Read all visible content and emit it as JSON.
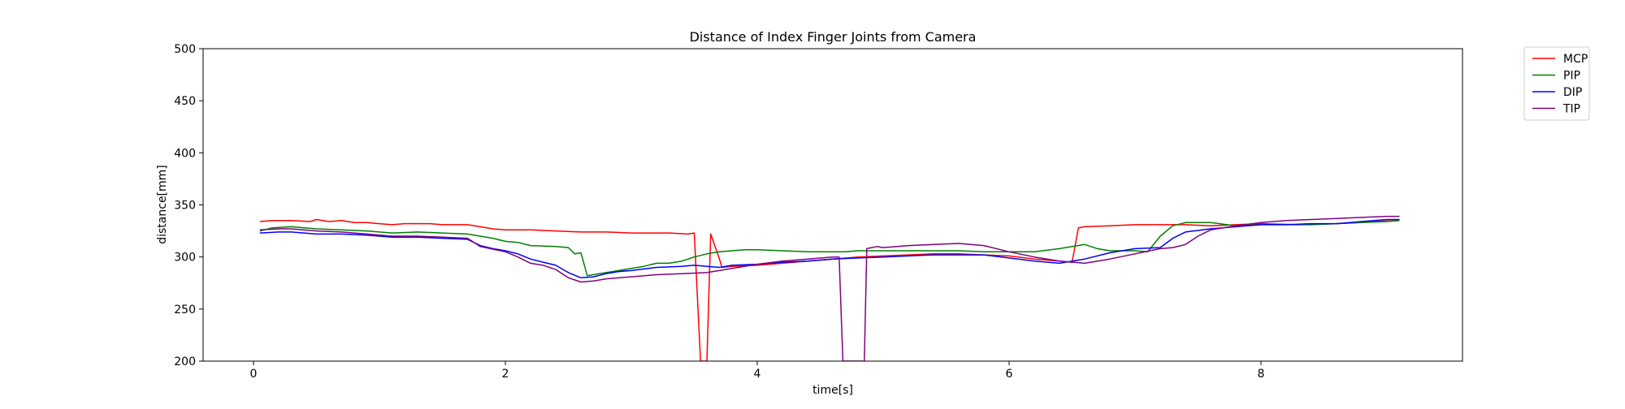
{
  "chart_data": {
    "type": "line",
    "title": "Distance of Index Finger Joints from Camera",
    "xlabel": "time[s]",
    "ylabel": "distance[mm]",
    "xlim": [
      -0.4,
      9.6
    ],
    "ylim": [
      200,
      500
    ],
    "xticks": [
      0,
      2,
      4,
      6,
      8
    ],
    "yticks": [
      200,
      250,
      300,
      350,
      400,
      450,
      500
    ],
    "grid": false,
    "legend_position": "outside-top-right",
    "series": [
      {
        "name": "MCP",
        "color": "#ff0000",
        "points": [
          [
            0.05,
            334
          ],
          [
            0.15,
            335
          ],
          [
            0.3,
            335
          ],
          [
            0.45,
            334
          ],
          [
            0.5,
            336
          ],
          [
            0.6,
            334
          ],
          [
            0.7,
            335
          ],
          [
            0.8,
            333
          ],
          [
            0.9,
            333
          ],
          [
            1.0,
            332
          ],
          [
            1.1,
            331
          ],
          [
            1.2,
            332
          ],
          [
            1.4,
            332
          ],
          [
            1.5,
            331
          ],
          [
            1.7,
            331
          ],
          [
            1.8,
            329
          ],
          [
            1.9,
            327
          ],
          [
            2.0,
            326
          ],
          [
            2.2,
            326
          ],
          [
            2.4,
            325
          ],
          [
            2.6,
            324
          ],
          [
            2.8,
            324
          ],
          [
            3.0,
            323
          ],
          [
            3.3,
            323
          ],
          [
            3.45,
            322
          ],
          [
            3.5,
            323
          ],
          [
            3.55,
            200
          ],
          [
            3.6,
            200
          ],
          [
            3.63,
            322
          ],
          [
            3.7,
            298
          ],
          [
            3.72,
            290
          ],
          [
            3.8,
            291
          ],
          [
            4.0,
            292
          ],
          [
            4.2,
            294
          ],
          [
            4.4,
            296
          ],
          [
            4.6,
            298
          ],
          [
            4.8,
            300
          ],
          [
            5.0,
            301
          ],
          [
            5.2,
            302
          ],
          [
            5.4,
            303
          ],
          [
            5.6,
            303
          ],
          [
            5.8,
            302
          ],
          [
            6.0,
            301
          ],
          [
            6.2,
            298
          ],
          [
            6.4,
            296
          ],
          [
            6.5,
            295
          ],
          [
            6.55,
            328
          ],
          [
            6.6,
            329
          ],
          [
            6.8,
            330
          ],
          [
            7.0,
            331
          ],
          [
            7.2,
            331
          ],
          [
            7.4,
            331
          ],
          [
            7.6,
            330
          ],
          [
            7.8,
            331
          ],
          [
            8.0,
            332
          ],
          [
            8.3,
            331
          ],
          [
            8.6,
            332
          ],
          [
            8.9,
            334
          ],
          [
            9.1,
            335
          ]
        ]
      },
      {
        "name": "PIP",
        "color": "#008000",
        "points": [
          [
            0.05,
            325
          ],
          [
            0.15,
            328
          ],
          [
            0.3,
            329
          ],
          [
            0.5,
            327
          ],
          [
            0.7,
            326
          ],
          [
            0.9,
            325
          ],
          [
            1.1,
            323
          ],
          [
            1.3,
            324
          ],
          [
            1.5,
            323
          ],
          [
            1.7,
            322
          ],
          [
            1.8,
            320
          ],
          [
            1.9,
            318
          ],
          [
            2.0,
            315
          ],
          [
            2.1,
            314
          ],
          [
            2.2,
            311
          ],
          [
            2.4,
            310
          ],
          [
            2.5,
            309
          ],
          [
            2.55,
            303
          ],
          [
            2.6,
            304
          ],
          [
            2.65,
            282
          ],
          [
            2.8,
            285
          ],
          [
            2.9,
            287
          ],
          [
            3.0,
            289
          ],
          [
            3.1,
            291
          ],
          [
            3.2,
            294
          ],
          [
            3.3,
            294
          ],
          [
            3.4,
            296
          ],
          [
            3.5,
            300
          ],
          [
            3.6,
            303
          ],
          [
            3.7,
            305
          ],
          [
            3.8,
            306
          ],
          [
            3.9,
            307
          ],
          [
            4.0,
            307
          ],
          [
            4.2,
            306
          ],
          [
            4.4,
            305
          ],
          [
            4.6,
            305
          ],
          [
            4.7,
            305
          ],
          [
            4.8,
            306
          ],
          [
            5.0,
            306
          ],
          [
            5.2,
            306
          ],
          [
            5.4,
            306
          ],
          [
            5.6,
            306
          ],
          [
            5.8,
            305
          ],
          [
            6.0,
            305
          ],
          [
            6.2,
            305
          ],
          [
            6.4,
            308
          ],
          [
            6.6,
            312
          ],
          [
            6.7,
            308
          ],
          [
            6.8,
            306
          ],
          [
            7.0,
            306
          ],
          [
            7.1,
            305
          ],
          [
            7.2,
            320
          ],
          [
            7.3,
            330
          ],
          [
            7.4,
            333
          ],
          [
            7.6,
            333
          ],
          [
            7.8,
            330
          ],
          [
            8.0,
            331
          ],
          [
            8.2,
            331
          ],
          [
            8.4,
            331
          ],
          [
            8.6,
            332
          ],
          [
            8.8,
            333
          ],
          [
            9.0,
            334
          ],
          [
            9.1,
            335
          ]
        ]
      },
      {
        "name": "DIP",
        "color": "#0000ff",
        "points": [
          [
            0.05,
            323
          ],
          [
            0.2,
            324
          ],
          [
            0.3,
            324
          ],
          [
            0.5,
            322
          ],
          [
            0.7,
            322
          ],
          [
            0.9,
            321
          ],
          [
            1.1,
            319
          ],
          [
            1.3,
            319
          ],
          [
            1.5,
            318
          ],
          [
            1.7,
            317
          ],
          [
            1.8,
            311
          ],
          [
            1.9,
            308
          ],
          [
            2.0,
            306
          ],
          [
            2.1,
            303
          ],
          [
            2.2,
            298
          ],
          [
            2.3,
            295
          ],
          [
            2.4,
            292
          ],
          [
            2.5,
            285
          ],
          [
            2.6,
            280
          ],
          [
            2.7,
            281
          ],
          [
            2.8,
            284
          ],
          [
            2.9,
            286
          ],
          [
            3.0,
            287
          ],
          [
            3.2,
            290
          ],
          [
            3.4,
            291
          ],
          [
            3.5,
            292
          ],
          [
            3.6,
            291
          ],
          [
            3.7,
            290
          ],
          [
            3.8,
            292
          ],
          [
            4.0,
            293
          ],
          [
            4.2,
            295
          ],
          [
            4.4,
            296
          ],
          [
            4.6,
            298
          ],
          [
            4.8,
            299
          ],
          [
            5.0,
            300
          ],
          [
            5.2,
            301
          ],
          [
            5.4,
            302
          ],
          [
            5.6,
            302
          ],
          [
            5.8,
            302
          ],
          [
            6.0,
            299
          ],
          [
            6.2,
            296
          ],
          [
            6.4,
            294
          ],
          [
            6.6,
            298
          ],
          [
            6.8,
            304
          ],
          [
            7.0,
            308
          ],
          [
            7.2,
            309
          ],
          [
            7.3,
            318
          ],
          [
            7.4,
            324
          ],
          [
            7.6,
            327
          ],
          [
            7.8,
            329
          ],
          [
            8.0,
            331
          ],
          [
            8.2,
            331
          ],
          [
            8.4,
            332
          ],
          [
            8.6,
            332
          ],
          [
            8.8,
            334
          ],
          [
            9.0,
            336
          ],
          [
            9.1,
            336
          ]
        ]
      },
      {
        "name": "TIP",
        "color": "#800080",
        "points": [
          [
            0.05,
            326
          ],
          [
            0.2,
            327
          ],
          [
            0.3,
            327
          ],
          [
            0.5,
            325
          ],
          [
            0.7,
            324
          ],
          [
            0.9,
            322
          ],
          [
            1.1,
            320
          ],
          [
            1.3,
            320
          ],
          [
            1.5,
            319
          ],
          [
            1.7,
            318
          ],
          [
            1.8,
            310
          ],
          [
            2.0,
            305
          ],
          [
            2.1,
            300
          ],
          [
            2.2,
            294
          ],
          [
            2.3,
            292
          ],
          [
            2.4,
            288
          ],
          [
            2.5,
            280
          ],
          [
            2.6,
            276
          ],
          [
            2.7,
            277
          ],
          [
            2.8,
            279
          ],
          [
            3.0,
            281
          ],
          [
            3.2,
            283
          ],
          [
            3.4,
            284
          ],
          [
            3.6,
            285
          ],
          [
            3.8,
            289
          ],
          [
            4.0,
            293
          ],
          [
            4.2,
            296
          ],
          [
            4.4,
            298
          ],
          [
            4.6,
            300
          ],
          [
            4.65,
            300
          ],
          [
            4.68,
            200
          ],
          [
            4.85,
            200
          ],
          [
            4.87,
            308
          ],
          [
            4.95,
            310
          ],
          [
            5.0,
            309
          ],
          [
            5.2,
            311
          ],
          [
            5.4,
            312
          ],
          [
            5.6,
            313
          ],
          [
            5.8,
            311
          ],
          [
            6.0,
            305
          ],
          [
            6.2,
            300
          ],
          [
            6.4,
            296
          ],
          [
            6.6,
            294
          ],
          [
            6.8,
            298
          ],
          [
            7.0,
            303
          ],
          [
            7.2,
            308
          ],
          [
            7.3,
            309
          ],
          [
            7.4,
            312
          ],
          [
            7.5,
            320
          ],
          [
            7.6,
            326
          ],
          [
            7.8,
            330
          ],
          [
            8.0,
            333
          ],
          [
            8.2,
            335
          ],
          [
            8.4,
            336
          ],
          [
            8.6,
            337
          ],
          [
            8.8,
            338
          ],
          [
            9.0,
            339
          ],
          [
            9.1,
            339
          ]
        ]
      }
    ]
  }
}
